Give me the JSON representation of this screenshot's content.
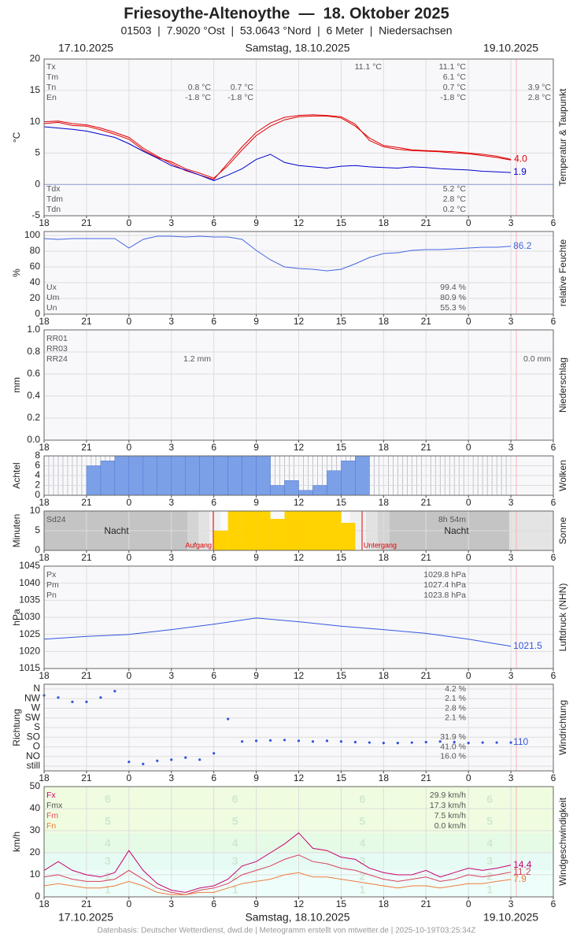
{
  "title": "Friesoythe-Altenoythe  —  18. Oktober 2025",
  "subtitle": "01503  |  7.9020 °Ost  |  53.0643 °Nord  |  6 Meter  |  Niedersachsen",
  "dates": [
    "17.10.2025",
    "Samstag, 18.10.2025",
    "19.10.2025"
  ],
  "footer": "Datenbasis: Deutscher Wetterdienst, dwd.de | Meteogramm erstellt von mtwetter.de | 2025-10-19T03:25:34Z",
  "xlim": [
    0,
    36
  ],
  "xticks": [
    {
      "value": 0,
      "label": "18"
    },
    {
      "value": 3,
      "label": "21"
    },
    {
      "value": 6,
      "label": "0"
    },
    {
      "value": 9,
      "label": "3"
    },
    {
      "value": 12,
      "label": "6"
    },
    {
      "value": 15,
      "label": "9"
    },
    {
      "value": 18,
      "label": "12"
    },
    {
      "value": 21,
      "label": "15"
    },
    {
      "value": 24,
      "label": "18"
    },
    {
      "value": 27,
      "label": "21"
    },
    {
      "value": 30,
      "label": "0"
    },
    {
      "value": 33,
      "label": "3"
    },
    {
      "value": 36,
      "label": "6"
    }
  ],
  "chart_data": [
    {
      "type": "line",
      "ylabel": "°C",
      "side_label": "Temperatur & Taupunkt",
      "grid": true,
      "ylim": [
        -5,
        20
      ],
      "yticks": [
        -5,
        0,
        5,
        10,
        15,
        20
      ],
      "x": [
        0,
        1,
        2,
        3,
        4,
        5,
        6,
        7,
        8,
        9,
        10,
        11,
        12,
        13,
        14,
        15,
        16,
        17,
        18,
        19,
        20,
        21,
        22,
        23,
        24,
        25,
        26,
        27,
        28,
        29,
        30,
        31,
        32,
        33
      ],
      "series": [
        {
          "color": "#e00000",
          "values": [
            9.7,
            9.9,
            9.4,
            9.3,
            8.7,
            8.0,
            7.2,
            5.5,
            4.3,
            3.6,
            2.5,
            1.8,
            1.0,
            3.0,
            5.5,
            7.8,
            9.3,
            10.3,
            10.8,
            10.9,
            10.9,
            10.6,
            9.3,
            7.4,
            6.2,
            5.9,
            5.5,
            5.4,
            5.3,
            5.2,
            5.0,
            4.8,
            4.5,
            4.0
          ],
          "value_labels": [
            null,
            null,
            null,
            null,
            null,
            null,
            null,
            null,
            null,
            null,
            null,
            null,
            null,
            null,
            null,
            null,
            null,
            null,
            null,
            null,
            null,
            null,
            null,
            null,
            null,
            null,
            null,
            null,
            null,
            null,
            null,
            null,
            null,
            "4.0"
          ]
        },
        {
          "color": "#e00000",
          "values": [
            10.0,
            10.1,
            9.7,
            9.5,
            9.0,
            8.3,
            7.5,
            5.8,
            4.5,
            3.3,
            2.2,
            1.5,
            0.8,
            3.4,
            6.0,
            8.3,
            9.8,
            10.7,
            11.0,
            11.1,
            11.0,
            10.8,
            9.6,
            7.0,
            6.0,
            5.6,
            5.4,
            5.3,
            5.2,
            5.0,
            4.9,
            4.6,
            4.3,
            3.9
          ]
        },
        {
          "color": "#0000cc",
          "label_last": true,
          "values": [
            9.2,
            9.0,
            8.8,
            8.5,
            8.0,
            7.5,
            6.5,
            5.3,
            4.2,
            3.0,
            2.3,
            1.5,
            0.6,
            1.5,
            2.5,
            4.0,
            4.8,
            3.5,
            3.0,
            2.8,
            2.6,
            2.9,
            3.0,
            2.8,
            2.7,
            2.6,
            2.8,
            2.7,
            2.5,
            2.4,
            2.3,
            2.1,
            2.0,
            1.9
          ]
        }
      ],
      "stats": {
        "labels": [
          "Tx",
          "Tm",
          "Tn",
          "En"
        ],
        "columns": [
          [
            null,
            null,
            "0.8 °C",
            "-1.8 °C"
          ],
          [
            null,
            null,
            "0.7 °C",
            "-1.8 °C"
          ],
          [
            "11.1 °C",
            null,
            null,
            null
          ],
          [
            "11.1 °C",
            "6.1 °C",
            "0.7 °C",
            "-1.8 °C"
          ],
          [
            null,
            null,
            "3.9 °C",
            "2.8 °C"
          ]
        ]
      },
      "stats_bottom": {
        "labels": [
          "Tdx",
          "Tdm",
          "Tdn"
        ],
        "columns": [
          [
            "5.2 °C",
            "2.8 °C",
            "0.2 °C"
          ]
        ]
      }
    },
    {
      "type": "line",
      "ylabel": "%",
      "side_label": "relative Feuchte",
      "grid": true,
      "ylim": [
        0,
        100
      ],
      "yticks": [
        0,
        20,
        40,
        60,
        80,
        100
      ],
      "x": [
        0,
        1,
        2,
        3,
        4,
        5,
        6,
        7,
        8,
        9,
        10,
        11,
        12,
        13,
        14,
        15,
        16,
        17,
        18,
        19,
        20,
        21,
        22,
        23,
        24,
        25,
        26,
        27,
        28,
        29,
        30,
        31,
        32,
        33
      ],
      "series": [
        {
          "color": "#4466dd",
          "label_last": true,
          "values": [
            96,
            95,
            96,
            96,
            96,
            96,
            84,
            95,
            99,
            99,
            98,
            99,
            98,
            98,
            95,
            81,
            69,
            60,
            58,
            57,
            55,
            57,
            64,
            72,
            77,
            78,
            81,
            82,
            82,
            83,
            84,
            85,
            85,
            86.2
          ]
        }
      ],
      "stats": {
        "labels": [
          "Ux",
          "Um",
          "Un"
        ],
        "columns": [
          [
            "99.4 %",
            "80.9 %",
            "55.3 %"
          ]
        ]
      }
    },
    {
      "type": "bar",
      "ylabel": "mm",
      "side_label": "Niederschlag",
      "grid": true,
      "ylim": [
        0,
        1
      ],
      "yticks": [
        {
          "value": 0,
          "label": "0.0"
        },
        0.2,
        0.4,
        0.6,
        0.8,
        {
          "value": 1,
          "label": "1.0"
        }
      ],
      "x": [
        0,
        1,
        2,
        3,
        4,
        5,
        6,
        7,
        8,
        9,
        10,
        11,
        12,
        13,
        14,
        15,
        16,
        17,
        18,
        19,
        20,
        21,
        22,
        23,
        24,
        25,
        26,
        27,
        28,
        29,
        30,
        31,
        32,
        33
      ],
      "series": [
        {
          "color": "#3366cc",
          "values": [
            0,
            0,
            0,
            0,
            0,
            0,
            0,
            0,
            0,
            0,
            0,
            0,
            0,
            0,
            0,
            0,
            0,
            0,
            0,
            0,
            0,
            0,
            0,
            0,
            0,
            0,
            0,
            0,
            0,
            0,
            0,
            0,
            0,
            0
          ]
        }
      ],
      "stats": {
        "labels": [
          "RR01",
          "RR03",
          "RR24"
        ],
        "columns": [
          [
            null,
            null,
            "1.2 mm"
          ],
          [
            null,
            null,
            "0.0 mm"
          ]
        ]
      }
    },
    {
      "type": "bar",
      "ylabel": "Achtel",
      "side_label": "Wolken",
      "grid": true,
      "ylim": [
        0,
        8
      ],
      "yticks": [
        0,
        2,
        4,
        6,
        8
      ],
      "x": [
        0,
        1,
        2,
        3,
        4,
        5,
        6,
        7,
        8,
        9,
        10,
        11,
        12,
        13,
        14,
        15,
        16,
        17,
        18,
        19,
        20,
        21,
        22,
        23,
        24,
        25,
        26,
        27,
        28,
        29,
        30,
        31,
        32,
        33,
        34,
        35
      ],
      "series": [
        {
          "color": "#7ba0e8",
          "values": [
            0,
            0,
            0,
            6,
            7,
            8,
            8,
            8,
            8,
            8,
            8,
            8,
            8,
            8,
            8,
            8,
            2,
            3,
            1,
            2,
            5,
            7,
            8,
            null,
            null,
            null,
            null,
            null,
            null,
            null,
            null,
            null,
            null,
            null,
            null,
            null
          ]
        }
      ]
    },
    {
      "type": "bar",
      "ylabel": "Minuten",
      "side_label": "Sonne",
      "grid": true,
      "ylim": [
        0,
        10
      ],
      "yticks": [
        0,
        5,
        10
      ],
      "x": [
        0,
        1,
        2,
        3,
        4,
        5,
        6,
        7,
        8,
        9,
        10,
        11,
        12,
        13,
        14,
        15,
        16,
        17,
        18,
        19,
        20,
        21,
        22,
        23,
        24,
        25,
        26,
        27,
        28,
        29,
        30,
        31,
        32,
        33,
        34,
        35
      ],
      "series": [
        {
          "color": "#ffd200",
          "values": [
            0,
            0,
            0,
            0,
            0,
            0,
            0,
            0,
            0,
            0,
            0,
            0,
            5,
            10,
            10,
            10,
            8,
            10,
            10,
            10,
            10,
            7,
            0,
            0,
            0,
            0,
            0,
            0,
            0,
            0,
            0,
            0,
            0,
            0,
            0,
            0
          ]
        }
      ],
      "stats": {
        "labels": [
          "Sd24"
        ],
        "columns": [
          [
            "8h 54m"
          ]
        ]
      },
      "sun": {
        "night": "Nacht",
        "rise": "Aufgang",
        "set": "Untergang"
      }
    },
    {
      "type": "line",
      "ylabel": "hPa",
      "side_label": "Luftdruck (NHN)",
      "grid": true,
      "ylim": [
        1015,
        1045
      ],
      "yticks": [
        1015,
        1020,
        1025,
        1030,
        1035,
        1040,
        1045
      ],
      "x": [
        0,
        3,
        6,
        9,
        12,
        15,
        18,
        21,
        24,
        27,
        30,
        33
      ],
      "series": [
        {
          "color": "#3355dd",
          "label_last": true,
          "values": [
            1023.6,
            1024.4,
            1025.0,
            1026.4,
            1028.0,
            1029.8,
            1028.7,
            1027.4,
            1026.4,
            1025.3,
            1023.6,
            1021.5
          ]
        }
      ],
      "stats": {
        "labels": [
          "Px",
          "Pm",
          "Pn"
        ],
        "columns": [
          [
            "1029.8 hPa",
            "1027.4 hPa",
            "1023.8 hPa"
          ]
        ]
      }
    },
    {
      "type": "scatter",
      "ylabel": "Richtung",
      "side_label": "Windrichtung",
      "grid": true,
      "ylim": [
        0,
        360
      ],
      "yticks": [
        {
          "value": 0,
          "label": "still"
        },
        {
          "value": 45,
          "label": "NO"
        },
        {
          "value": 90,
          "label": "O"
        },
        {
          "value": 135,
          "label": "SO"
        },
        {
          "value": 180,
          "label": "S"
        },
        {
          "value": 225,
          "label": "SW"
        },
        {
          "value": 270,
          "label": "W"
        },
        {
          "value": 315,
          "label": "NW"
        },
        {
          "value": 360,
          "label": "N"
        }
      ],
      "x": [
        0,
        1,
        2,
        3,
        4,
        5,
        6,
        7,
        8,
        9,
        10,
        11,
        12,
        13,
        14,
        15,
        16,
        17,
        18,
        19,
        20,
        21,
        22,
        23,
        24,
        25,
        26,
        27,
        28,
        29,
        30,
        31,
        32,
        33
      ],
      "series": [
        {
          "color": "#3355dd",
          "label_last": true,
          "values": [
            330,
            320,
            300,
            300,
            320,
            350,
            20,
            10,
            25,
            30,
            40,
            30,
            60,
            220,
            115,
            118,
            120,
            122,
            118,
            115,
            118,
            115,
            112,
            110,
            108,
            108,
            110,
            112,
            115,
            112,
            108,
            110,
            110,
            110
          ]
        }
      ],
      "stats": {
        "columns": [
          [
            "4.2 %",
            "2.1 %",
            "2.8 %",
            "2.1 %",
            null,
            "31.9 %",
            "41.0 %",
            "16.0 %",
            null
          ]
        ]
      }
    },
    {
      "type": "line",
      "ylabel": "km/h",
      "side_label": "Windgeschwindigkeit",
      "grid": true,
      "ylim": [
        0,
        50
      ],
      "yticks": [
        0,
        10,
        20,
        30,
        40,
        50
      ],
      "x": [
        0,
        1,
        2,
        3,
        4,
        5,
        6,
        7,
        8,
        9,
        10,
        11,
        12,
        13,
        14,
        15,
        16,
        17,
        18,
        19,
        20,
        21,
        22,
        23,
        24,
        25,
        26,
        27,
        28,
        29,
        30,
        31,
        32,
        33
      ],
      "beaufort": [
        1,
        2,
        3,
        4,
        5,
        6
      ],
      "series": [
        {
          "color": "#c8006e",
          "label_last": true,
          "values": [
            12,
            16,
            12,
            10,
            9,
            11,
            21,
            12,
            6,
            3,
            2,
            4,
            5,
            8,
            14,
            16,
            20,
            24,
            29,
            22,
            21,
            18,
            17,
            13,
            11,
            10,
            10,
            12,
            9,
            11,
            13,
            12,
            13,
            14.4
          ]
        },
        {
          "color": "#d8405a",
          "label_last": true,
          "values": [
            9,
            10,
            8,
            7,
            7,
            8,
            12,
            8,
            4,
            2,
            1,
            3,
            4,
            6,
            10,
            12,
            14,
            17,
            19,
            16,
            15,
            13,
            12,
            10,
            8,
            7,
            8,
            9,
            7,
            8,
            10,
            9,
            10,
            11.2
          ]
        },
        {
          "color": "#f07a3a",
          "label_last": true,
          "values": [
            5,
            6,
            5,
            4,
            4,
            5,
            7,
            5,
            2,
            1,
            1,
            2,
            2,
            4,
            6,
            7,
            8,
            10,
            11,
            9,
            9,
            8,
            7,
            6,
            5,
            4,
            5,
            5,
            4,
            5,
            6,
            6,
            7,
            7.9
          ]
        }
      ],
      "stats": {
        "labels": [
          "Fx",
          "Fmx",
          "Fm",
          "Fn"
        ],
        "colors": [
          "#c8006e",
          "#555555",
          "#e05060",
          "#f07a3a"
        ],
        "columns": [
          [
            "29.9 km/h",
            "17.3 km/h",
            "7.5 km/h",
            "0.0 km/h"
          ]
        ]
      }
    }
  ]
}
